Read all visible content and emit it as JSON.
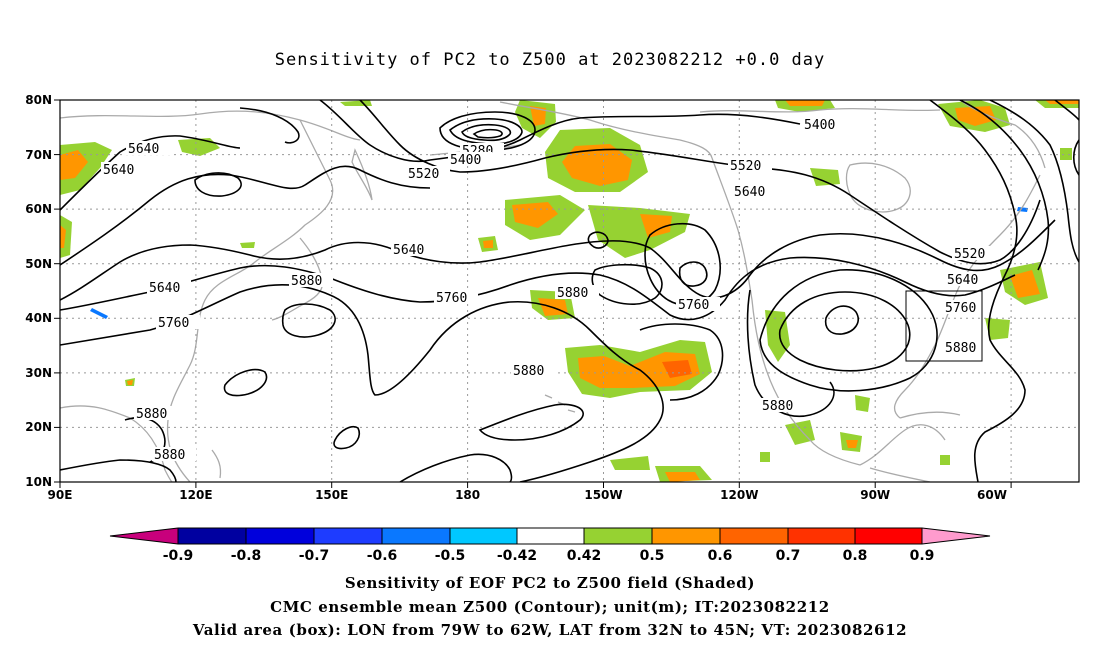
{
  "title": "Sensitivity of PC2 to Z500 at 2023082212 +0.0 day",
  "map": {
    "lat_ticks": [
      "80N",
      "70N",
      "60N",
      "50N",
      "40N",
      "30N",
      "20N",
      "10N"
    ],
    "lon_ticks": [
      "90E",
      "120E",
      "150E",
      "180",
      "150W",
      "120W",
      "90W",
      "60W"
    ],
    "lon_range": [
      "90E",
      "45W"
    ],
    "lat_range": [
      "10N",
      "80N"
    ],
    "gridlines": true,
    "valid_box": {
      "lon_west": "79W",
      "lon_east": "62W",
      "lat_south": "32N",
      "lat_north": "45N"
    }
  },
  "contours": {
    "labels": [
      {
        "text": "5640"
      },
      {
        "text": "5640"
      },
      {
        "text": "5280"
      },
      {
        "text": "5400"
      },
      {
        "text": "5520"
      },
      {
        "text": "5400"
      },
      {
        "text": "5520"
      },
      {
        "text": "5640"
      },
      {
        "text": "5640"
      },
      {
        "text": "5880"
      },
      {
        "text": "5760"
      },
      {
        "text": "5880"
      },
      {
        "text": "5640"
      },
      {
        "text": "5760"
      },
      {
        "text": "5760"
      },
      {
        "text": "5880"
      },
      {
        "text": "5880"
      },
      {
        "text": "5880"
      },
      {
        "text": "5520"
      },
      {
        "text": "5640"
      },
      {
        "text": "5760"
      },
      {
        "text": "5880"
      },
      {
        "text": "5880"
      }
    ],
    "line_color": "#000000"
  },
  "colorbar": {
    "labels": [
      "-0.9",
      "-0.8",
      "-0.7",
      "-0.6",
      "-0.5",
      "-0.42",
      "0.42",
      "0.5",
      "0.6",
      "0.7",
      "0.8",
      "0.9"
    ],
    "colors": [
      "#c8007c",
      "#0000a0",
      "#0000dc",
      "#1e3cff",
      "#0a78ff",
      "#00c8ff",
      "#ffffff",
      "#96d232",
      "#ff9600",
      "#ff6400",
      "#ff3200",
      "#ff0000",
      "#ff9bcd"
    ]
  },
  "shading_colors": {
    "green": "#96d232",
    "orange": "#ff9600",
    "dark_orange": "#ff6400",
    "blue": "#0a78ff",
    "cyan": "#00c8ff",
    "coast": "#aaaaaa"
  },
  "captions": [
    "Sensitivity of EOF PC2 to Z500 field (Shaded)",
    "CMC ensemble mean Z500 (Contour); unit(m); IT:2023082212",
    "Valid area (box): LON from 79W to 62W, LAT from 32N to 45N; VT: 2023082612"
  ]
}
